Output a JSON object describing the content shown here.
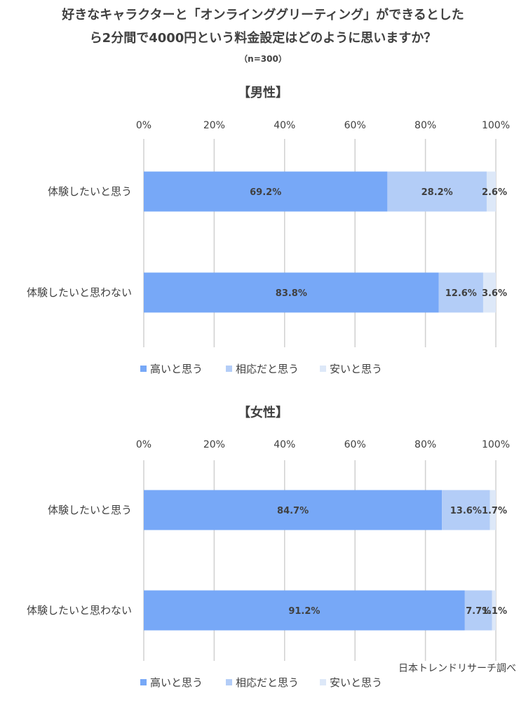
{
  "title": {
    "line1": "好きなキャラクターと「オンラインググリーティング」ができるとした",
    "line2": "ら2分間で4000円という料金設定はどのように思いますか？",
    "n_label": "（n=300）"
  },
  "credit": "日本トレンドリサーチ調べ",
  "colors": {
    "high": "#77a8f7",
    "fair": "#b3cdf7",
    "cheap": "#dde8f8",
    "grid": "#d0d0d0",
    "text": "#404040"
  },
  "chart_data": [
    {
      "type": "bar",
      "stacked": true,
      "orientation": "horizontal",
      "percent": true,
      "title": "【男性】",
      "categories": [
        "体験したいと思う",
        "体験したいと思わない"
      ],
      "xlim": [
        0,
        100
      ],
      "xticks": [
        "0%",
        "20%",
        "40%",
        "60%",
        "80%",
        "100%"
      ],
      "grid": true,
      "legend_position": "bottom",
      "series": [
        {
          "name": "高いと思う",
          "values": [
            69.2,
            83.8
          ],
          "labels": [
            "69.2%",
            "83.8%"
          ]
        },
        {
          "name": "相応だと思う",
          "values": [
            28.2,
            12.6
          ],
          "labels": [
            "28.2%",
            "12.6%"
          ]
        },
        {
          "name": "安いと思う",
          "values": [
            2.6,
            3.6
          ],
          "labels": [
            "2.6%",
            "3.6%"
          ]
        }
      ]
    },
    {
      "type": "bar",
      "stacked": true,
      "orientation": "horizontal",
      "percent": true,
      "title": "【女性】",
      "categories": [
        "体験したいと思う",
        "体験したいと思わない"
      ],
      "xlim": [
        0,
        100
      ],
      "xticks": [
        "0%",
        "20%",
        "40%",
        "60%",
        "80%",
        "100%"
      ],
      "grid": true,
      "legend_position": "bottom",
      "series": [
        {
          "name": "高いと思う",
          "values": [
            84.7,
            91.2
          ],
          "labels": [
            "84.7%",
            "91.2%"
          ]
        },
        {
          "name": "相応だと思う",
          "values": [
            13.6,
            7.7
          ],
          "labels": [
            "13.6%",
            "7.7%"
          ]
        },
        {
          "name": "安いと思う",
          "values": [
            1.7,
            1.1
          ],
          "labels": [
            "1.7%",
            "1.1%"
          ]
        }
      ]
    }
  ]
}
